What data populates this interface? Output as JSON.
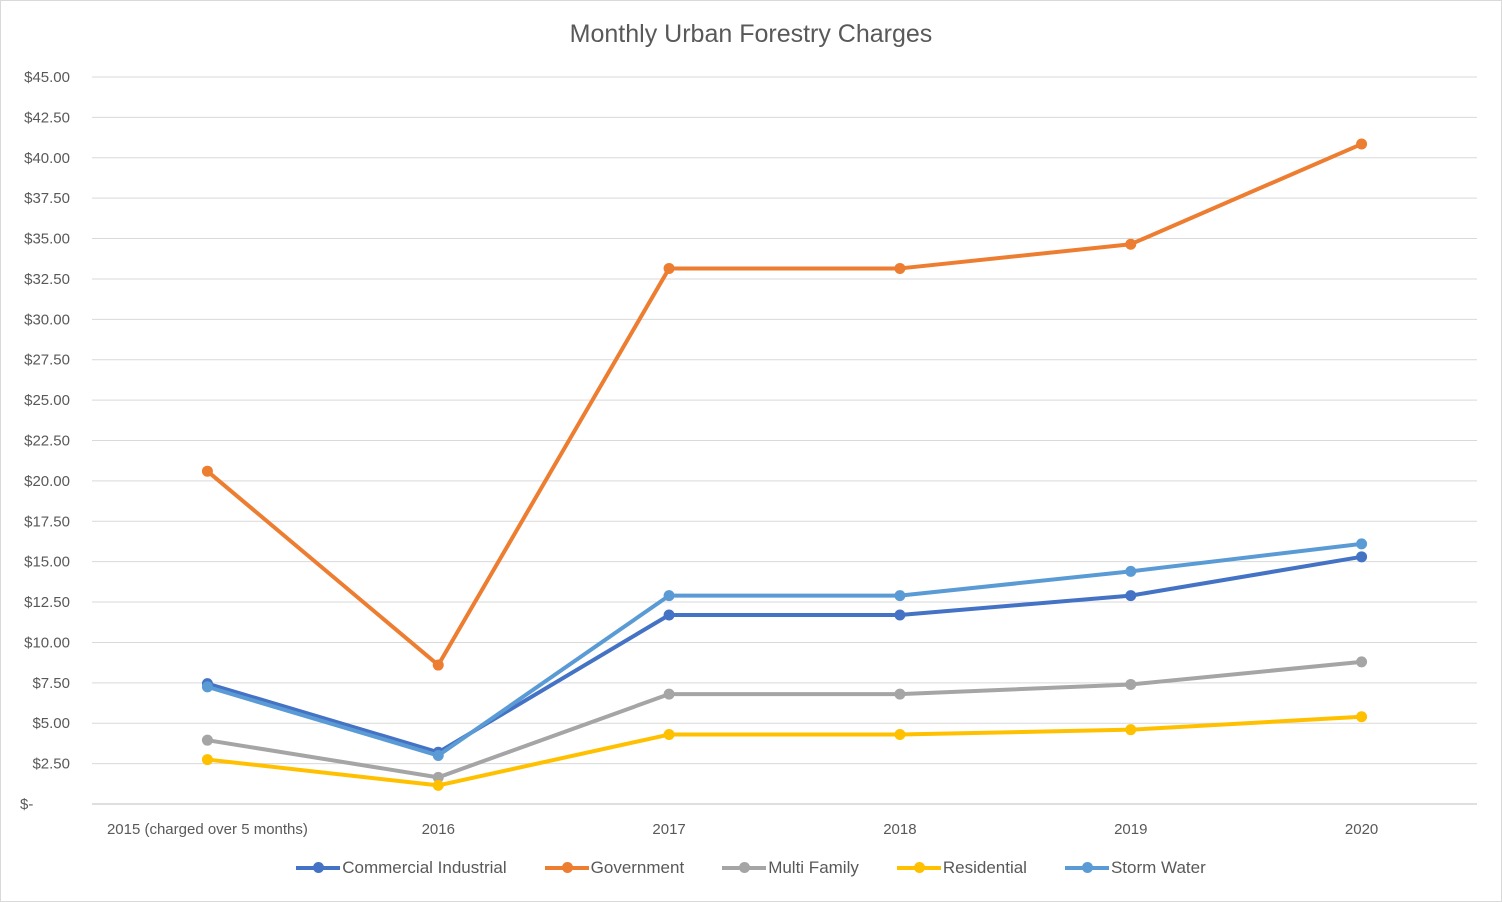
{
  "chart_data": {
    "type": "line",
    "title": "Monthly Urban Forestry Charges",
    "categories": [
      "2015 (charged over 5 months)",
      "2016",
      "2017",
      "2018",
      "2019",
      "2020"
    ],
    "ylim": [
      0,
      45
    ],
    "yticks": [
      0,
      2.5,
      5,
      7.5,
      10,
      12.5,
      15,
      17.5,
      20,
      22.5,
      25,
      27.5,
      30,
      32.5,
      35,
      37.5,
      40,
      42.5,
      45
    ],
    "ytick_labels": [
      "$-",
      "$2.50",
      "$5.00",
      "$7.50",
      "$10.00",
      "$12.50",
      "$15.00",
      "$17.50",
      "$20.00",
      "$22.50",
      "$25.00",
      "$27.50",
      "$30.00",
      "$32.50",
      "$35.00",
      "$37.50",
      "$40.00",
      "$42.50",
      "$45.00"
    ],
    "grid": true,
    "legend_position": "bottom",
    "series": [
      {
        "name": "Commercial Industrial",
        "color": "#4472C4",
        "values": [
          7.45,
          3.2,
          11.7,
          11.7,
          12.9,
          15.3
        ]
      },
      {
        "name": "Government",
        "color": "#ED7D31",
        "values": [
          20.6,
          8.6,
          33.15,
          33.15,
          34.65,
          40.85
        ]
      },
      {
        "name": "Multi Family",
        "color": "#A5A5A5",
        "values": [
          3.95,
          1.65,
          6.8,
          6.8,
          7.4,
          8.8
        ]
      },
      {
        "name": "Residential",
        "color": "#FFC000",
        "values": [
          2.75,
          1.15,
          4.3,
          4.3,
          4.6,
          5.4
        ]
      },
      {
        "name": "Storm Water",
        "color": "#5B9BD5",
        "values": [
          7.25,
          3.0,
          12.9,
          12.9,
          14.4,
          16.1
        ]
      }
    ]
  }
}
